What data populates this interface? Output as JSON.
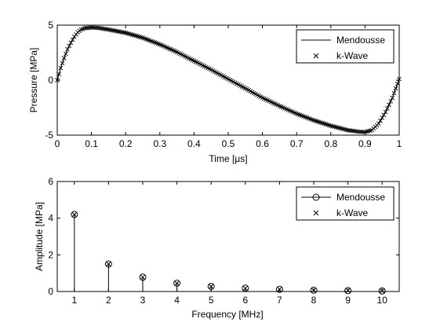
{
  "chart_data": [
    {
      "type": "line",
      "xlabel": "Time [μs]",
      "ylabel": "Pressure [MPa]",
      "xlim": [
        0,
        1
      ],
      "ylim": [
        -5,
        5
      ],
      "xticks": [
        "0",
        "0.1",
        "0.2",
        "0.3",
        "0.4",
        "0.5",
        "0.6",
        "0.7",
        "0.8",
        "0.9",
        "1"
      ],
      "yticks": [
        "-5",
        "0",
        "5"
      ],
      "legend_position": "top-right",
      "series": [
        {
          "name": "Mendousse",
          "style": "solid-line",
          "x": [
            0,
            0.01,
            0.02,
            0.03,
            0.04,
            0.05,
            0.06,
            0.07,
            0.08,
            0.1,
            0.12,
            0.15,
            0.2,
            0.25,
            0.3,
            0.35,
            0.4,
            0.45,
            0.5,
            0.55,
            0.6,
            0.65,
            0.7,
            0.75,
            0.8,
            0.85,
            0.88,
            0.9,
            0.92,
            0.94,
            0.96,
            0.98,
            1.0
          ],
          "y": [
            0,
            1.1,
            2.0,
            2.8,
            3.4,
            3.95,
            4.35,
            4.6,
            4.72,
            4.78,
            4.75,
            4.6,
            4.3,
            3.85,
            3.25,
            2.55,
            1.75,
            0.95,
            0.1,
            -0.75,
            -1.6,
            -2.35,
            -3.05,
            -3.65,
            -4.15,
            -4.55,
            -4.68,
            -4.72,
            -4.55,
            -3.95,
            -2.9,
            -1.6,
            0.1
          ]
        },
        {
          "name": "k-Wave",
          "style": "x-markers",
          "samples": 200
        }
      ]
    },
    {
      "type": "stem",
      "xlabel": "Frequency [MHz]",
      "ylabel": "Amplitude [MPa]",
      "xlim": [
        0.5,
        10.5
      ],
      "ylim": [
        0,
        6
      ],
      "xticks": [
        "1",
        "2",
        "3",
        "4",
        "5",
        "6",
        "7",
        "8",
        "9",
        "10"
      ],
      "yticks": [
        "0",
        "2",
        "4",
        "6"
      ],
      "legend_position": "top-right",
      "x": [
        1,
        2,
        3,
        4,
        5,
        6,
        7,
        8,
        9,
        10
      ],
      "series": [
        {
          "name": "Mendousse",
          "style": "stem-circle",
          "values": [
            4.2,
            1.5,
            0.78,
            0.45,
            0.28,
            0.18,
            0.12,
            0.07,
            0.05,
            0.03
          ]
        },
        {
          "name": "k-Wave",
          "style": "x-markers",
          "values": [
            4.2,
            1.5,
            0.78,
            0.45,
            0.28,
            0.18,
            0.12,
            0.07,
            0.05,
            0.03
          ]
        }
      ]
    }
  ]
}
